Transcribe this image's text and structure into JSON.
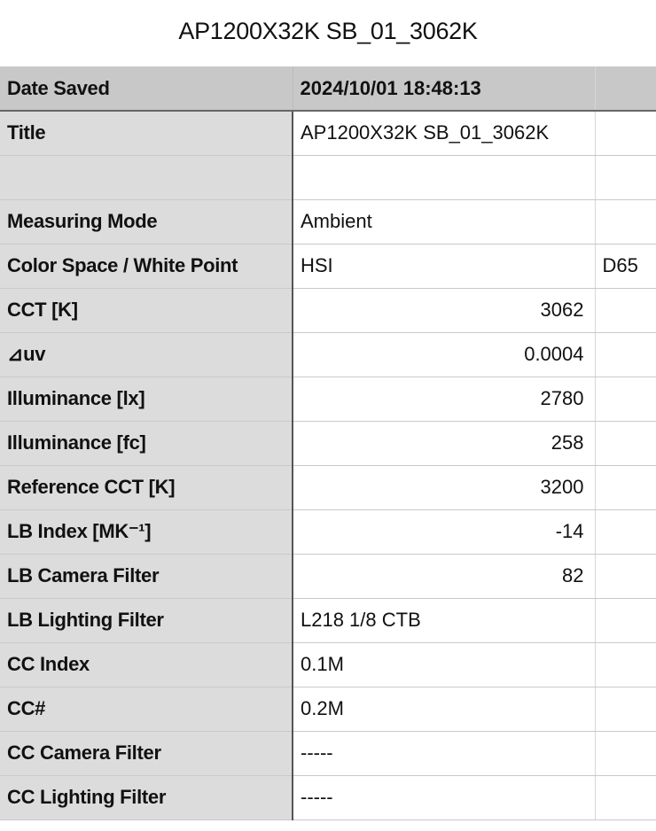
{
  "document_title": "AP1200X32K SB_01_3062K",
  "header": {
    "label": "Date Saved",
    "value": "2024/10/01 18:48:13",
    "extra": ""
  },
  "rows": [
    {
      "label": "Title",
      "value": "AP1200X32K SB_01_3062K",
      "align": "left",
      "extra": ""
    },
    {
      "label": "",
      "value": "",
      "align": "left",
      "extra": ""
    },
    {
      "label": "Measuring Mode",
      "value": "Ambient",
      "align": "left",
      "extra": ""
    },
    {
      "label": "Color Space / White Point",
      "value": "HSI",
      "align": "left",
      "extra": "D65"
    },
    {
      "label": "CCT [K]",
      "value": "3062",
      "align": "right",
      "extra": ""
    },
    {
      "label": "⊿uv",
      "value": "0.0004",
      "align": "right",
      "extra": ""
    },
    {
      "label": "Illuminance [lx]",
      "value": "2780",
      "align": "right",
      "extra": ""
    },
    {
      "label": "Illuminance [fc]",
      "value": "258",
      "align": "right",
      "extra": ""
    },
    {
      "label": "Reference CCT [K]",
      "value": "3200",
      "align": "right",
      "extra": ""
    },
    {
      "label": "LB Index [MK⁻¹]",
      "value": "-14",
      "align": "right",
      "extra": ""
    },
    {
      "label": "LB Camera Filter",
      "value": "82",
      "align": "right",
      "extra": ""
    },
    {
      "label": "LB Lighting Filter",
      "value": "L218 1/8 CTB",
      "align": "left",
      "extra": ""
    },
    {
      "label": "CC Index",
      "value": "0.1M",
      "align": "left",
      "extra": ""
    },
    {
      "label": "CC#",
      "value": "0.2M",
      "align": "left",
      "extra": ""
    },
    {
      "label": "CC Camera Filter",
      "value": "-----",
      "align": "left",
      "extra": ""
    },
    {
      "label": "CC Lighting Filter",
      "value": "-----",
      "align": "left",
      "extra": ""
    }
  ]
}
